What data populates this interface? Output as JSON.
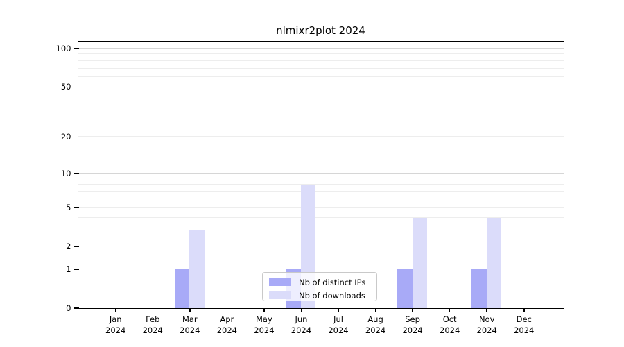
{
  "chart_data": {
    "type": "bar",
    "title": "nlmixr2plot 2024",
    "categories": [
      "Jan",
      "Feb",
      "Mar",
      "Apr",
      "May",
      "Jun",
      "Jul",
      "Aug",
      "Sep",
      "Oct",
      "Nov",
      "Dec"
    ],
    "x_year": "2024",
    "series": [
      {
        "name": "Nb of distinct IPs",
        "color": "#a8aaf7",
        "values": [
          0,
          0,
          1,
          0,
          0,
          1,
          0,
          0,
          1,
          0,
          1,
          0
        ]
      },
      {
        "name": "Nb of downloads",
        "color": "#dbdcfa",
        "values": [
          0,
          0,
          3,
          0,
          0,
          8,
          0,
          0,
          4,
          0,
          4,
          0
        ]
      }
    ],
    "y_scale": "log1p",
    "ylim": [
      0,
      112
    ],
    "y_ticks": [
      0,
      1,
      2,
      5,
      10,
      20,
      50,
      100
    ],
    "y_minor_grid": [
      2,
      3,
      4,
      5,
      6,
      7,
      8,
      9,
      20,
      30,
      40,
      60,
      70,
      80,
      90
    ],
    "y_major_grid": [
      1,
      10,
      100
    ],
    "grid": "on",
    "legend_position": "inside-bottom-center"
  },
  "colors": {
    "distinct_ips": "#a8aaf7",
    "downloads": "#dbdcfa",
    "grid_minor": "#ededed",
    "grid_major": "#d6d6d6",
    "axis_frame": "#000000",
    "legend_border": "#c9c9c9"
  }
}
